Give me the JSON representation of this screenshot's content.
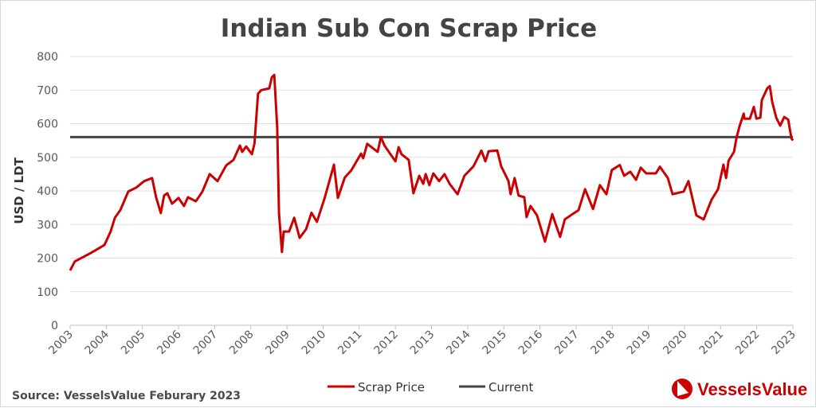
{
  "chart_data": {
    "type": "line",
    "title": "Indian Sub Con Scrap Price",
    "xlabel": "",
    "ylabel": "USD / LDT",
    "xlim": [
      2003,
      2023
    ],
    "ylim": [
      0,
      800
    ],
    "yticks": [
      "0",
      "100",
      "200",
      "300",
      "400",
      "500",
      "600",
      "700",
      "800"
    ],
    "xticks": [
      "2003",
      "2004",
      "2005",
      "2006",
      "2007",
      "2008",
      "2009",
      "2010",
      "2011",
      "2012",
      "2013",
      "2014",
      "2015",
      "2016",
      "2017",
      "2018",
      "2019",
      "2020",
      "2021",
      "2022",
      "2023"
    ],
    "grid": "horizontal",
    "legend_position": "bottom",
    "series": [
      {
        "name": "Scrap Price",
        "color": "#cc0000",
        "x": [
          2003.0,
          2003.13,
          2003.57,
          2003.95,
          2004.12,
          2004.24,
          2004.39,
          2004.61,
          2004.83,
          2005.05,
          2005.27,
          2005.38,
          2005.51,
          2005.6,
          2005.69,
          2005.82,
          2006.0,
          2006.15,
          2006.26,
          2006.48,
          2006.66,
          2006.86,
          2007.08,
          2007.32,
          2007.52,
          2007.7,
          2007.76,
          2007.87,
          2008.03,
          2008.1,
          2008.2,
          2008.29,
          2008.51,
          2008.58,
          2008.65,
          2008.73,
          2008.78,
          2008.86,
          2008.91,
          2009.06,
          2009.2,
          2009.35,
          2009.53,
          2009.68,
          2009.83,
          2010.05,
          2010.3,
          2010.41,
          2010.6,
          2010.78,
          2011.05,
          2011.11,
          2011.22,
          2011.51,
          2011.6,
          2011.7,
          2012.0,
          2012.09,
          2012.17,
          2012.37,
          2012.5,
          2012.66,
          2012.77,
          2012.84,
          2012.94,
          2013.05,
          2013.21,
          2013.36,
          2013.5,
          2013.72,
          2013.91,
          2014.16,
          2014.38,
          2014.49,
          2014.58,
          2014.82,
          2014.93,
          2015.13,
          2015.19,
          2015.3,
          2015.41,
          2015.57,
          2015.63,
          2015.74,
          2015.92,
          2016.14,
          2016.34,
          2016.56,
          2016.69,
          2016.85,
          2017.07,
          2017.25,
          2017.47,
          2017.66,
          2017.84,
          2017.99,
          2018.21,
          2018.33,
          2018.5,
          2018.66,
          2018.79,
          2018.94,
          2019.21,
          2019.32,
          2019.54,
          2019.67,
          2019.98,
          2020.11,
          2020.33,
          2020.53,
          2020.75,
          2020.93,
          2021.08,
          2021.15,
          2021.22,
          2021.37,
          2021.44,
          2021.53,
          2021.64,
          2021.66,
          2021.81,
          2021.92,
          2021.99,
          2022.1,
          2022.14,
          2022.29,
          2022.36,
          2022.43,
          2022.54,
          2022.65,
          2022.76,
          2022.87,
          2022.96,
          2023.0
        ],
        "y": [
          163,
          190,
          215,
          239,
          279,
          320,
          343,
          398,
          410,
          429,
          438,
          381,
          334,
          386,
          393,
          362,
          379,
          355,
          381,
          369,
          398,
          450,
          429,
          476,
          492,
          535,
          516,
          532,
          509,
          540,
          689,
          700,
          705,
          738,
          745,
          587,
          334,
          218,
          279,
          279,
          320,
          260,
          286,
          335,
          308,
          381,
          478,
          379,
          440,
          461,
          511,
          497,
          540,
          516,
          560,
          535,
          488,
          530,
          509,
          492,
          393,
          445,
          421,
          450,
          417,
          452,
          429,
          450,
          421,
          390,
          445,
          473,
          520,
          488,
          518,
          520,
          473,
          429,
          390,
          438,
          386,
          381,
          322,
          355,
          327,
          249,
          331,
          263,
          315,
          327,
          343,
          405,
          346,
          417,
          390,
          462,
          477,
          445,
          457,
          433,
          469,
          452,
          452,
          472,
          438,
          390,
          398,
          429,
          327,
          315,
          374,
          405,
          478,
          438,
          490,
          516,
          559,
          594,
          630,
          615,
          615,
          650,
          615,
          618,
          670,
          705,
          712,
          663,
          618,
          594,
          620,
          612,
          556,
          550
        ]
      },
      {
        "name": "Current",
        "color": "#444444",
        "value": 560
      }
    ]
  },
  "source": "Source: VesselsValue Feburary 2023",
  "logo": "VesselsValue"
}
